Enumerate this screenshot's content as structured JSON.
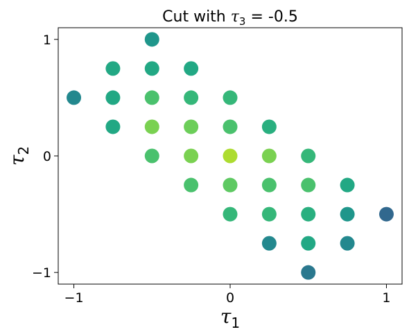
{
  "chart_data": {
    "type": "scatter",
    "title": "Cut with τ₃ = -0.5",
    "title_parts": {
      "text": "Cut with ",
      "symbol": "τ",
      "sub": "3",
      "rest": " = -0.5"
    },
    "xlabel": {
      "symbol": "τ",
      "sub": "1"
    },
    "ylabel": {
      "symbol": "τ",
      "sub": "2"
    },
    "xlim": [
      -1.1,
      1.1
    ],
    "ylim": [
      -1.1,
      1.1
    ],
    "xticks": [
      -1,
      0,
      1
    ],
    "yticks": [
      -1,
      0,
      1
    ],
    "xtick_labels": [
      "−1",
      "0",
      "1"
    ],
    "ytick_labels": [
      "−1",
      "0",
      "1"
    ],
    "grid": false,
    "legend": "none",
    "points": [
      {
        "x": -0.5,
        "y": 1.0,
        "color": "#1f968b"
      },
      {
        "x": -0.75,
        "y": 0.75,
        "color": "#22a884"
      },
      {
        "x": -0.5,
        "y": 0.75,
        "color": "#22a884"
      },
      {
        "x": -0.25,
        "y": 0.75,
        "color": "#22a884"
      },
      {
        "x": -1.0,
        "y": 0.5,
        "color": "#23888e"
      },
      {
        "x": -0.75,
        "y": 0.5,
        "color": "#22a884"
      },
      {
        "x": -0.5,
        "y": 0.5,
        "color": "#4ac16d"
      },
      {
        "x": -0.25,
        "y": 0.5,
        "color": "#35b779"
      },
      {
        "x": 0.0,
        "y": 0.5,
        "color": "#35b779"
      },
      {
        "x": -0.75,
        "y": 0.25,
        "color": "#22a884"
      },
      {
        "x": -0.5,
        "y": 0.25,
        "color": "#7ad151"
      },
      {
        "x": -0.25,
        "y": 0.25,
        "color": "#6cce59"
      },
      {
        "x": 0.0,
        "y": 0.25,
        "color": "#4ac16d"
      },
      {
        "x": 0.25,
        "y": 0.25,
        "color": "#29af7f"
      },
      {
        "x": -0.5,
        "y": 0.0,
        "color": "#4ac16d"
      },
      {
        "x": -0.25,
        "y": 0.0,
        "color": "#7ad151"
      },
      {
        "x": 0.0,
        "y": 0.0,
        "color": "#addc30"
      },
      {
        "x": 0.25,
        "y": 0.0,
        "color": "#7ad151"
      },
      {
        "x": 0.5,
        "y": 0.0,
        "color": "#35b779"
      },
      {
        "x": -0.25,
        "y": -0.25,
        "color": "#4ac16d"
      },
      {
        "x": 0.0,
        "y": -0.25,
        "color": "#5ec962"
      },
      {
        "x": 0.25,
        "y": -0.25,
        "color": "#4ac16d"
      },
      {
        "x": 0.5,
        "y": -0.25,
        "color": "#4ac16d"
      },
      {
        "x": 0.75,
        "y": -0.25,
        "color": "#22a884"
      },
      {
        "x": 0.0,
        "y": -0.5,
        "color": "#35b779"
      },
      {
        "x": 0.25,
        "y": -0.5,
        "color": "#35b779"
      },
      {
        "x": 0.5,
        "y": -0.5,
        "color": "#29af7f"
      },
      {
        "x": 0.75,
        "y": -0.5,
        "color": "#1f968b"
      },
      {
        "x": 1.0,
        "y": -0.5,
        "color": "#31688e"
      },
      {
        "x": 0.25,
        "y": -0.75,
        "color": "#23888e"
      },
      {
        "x": 0.5,
        "y": -0.75,
        "color": "#22a884"
      },
      {
        "x": 0.75,
        "y": -0.75,
        "color": "#23888e"
      },
      {
        "x": 0.5,
        "y": -1.0,
        "color": "#2a788e"
      }
    ]
  }
}
